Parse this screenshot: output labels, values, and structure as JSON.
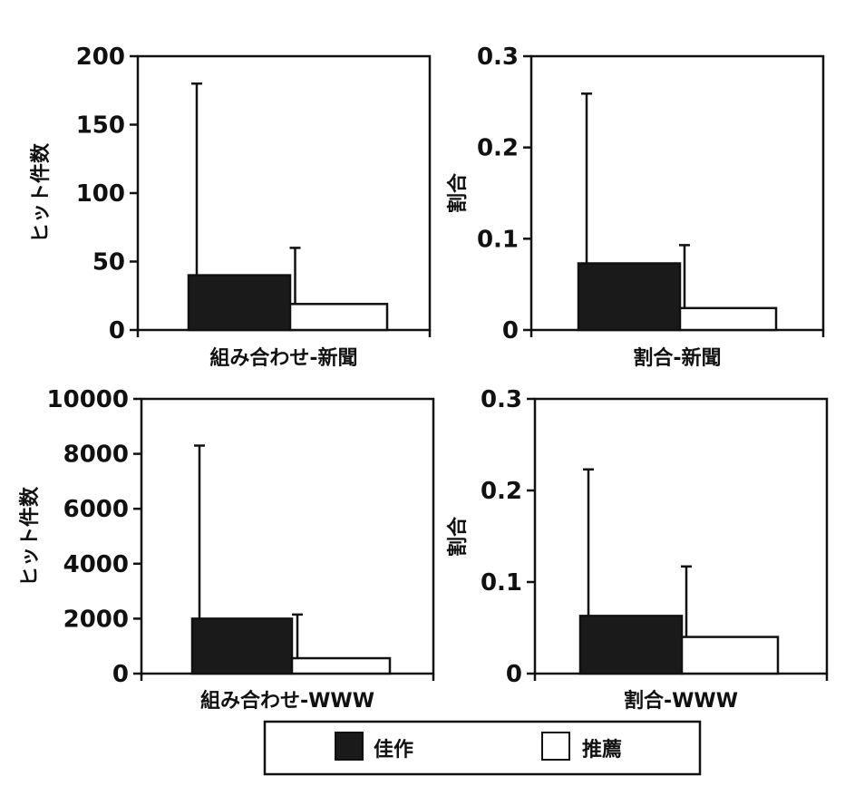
{
  "chart_data": [
    {
      "type": "bar",
      "xlabel": "組み合わせ-新聞",
      "ylabel": "ヒット件数",
      "ylim": [
        0,
        200
      ],
      "yticks": [
        "0",
        "50",
        "100",
        "150",
        "200"
      ],
      "series": [
        {
          "name": "佳作",
          "value": 40,
          "error_upper": 180
        },
        {
          "name": "推薦",
          "value": 19,
          "error_upper": 60
        }
      ]
    },
    {
      "type": "bar",
      "xlabel": "割合-新聞",
      "ylabel": "割合",
      "ylim": [
        0,
        0.3
      ],
      "yticks": [
        "0",
        "0.1",
        "0.2",
        "0.3"
      ],
      "series": [
        {
          "name": "佳作",
          "value": 0.073,
          "error_upper": 0.259
        },
        {
          "name": "推薦",
          "value": 0.024,
          "error_upper": 0.093
        }
      ]
    },
    {
      "type": "bar",
      "xlabel": "組み合わせ-WWW",
      "ylabel": "ヒット件数",
      "ylim": [
        0,
        10000
      ],
      "yticks": [
        "0",
        "2000",
        "4000",
        "6000",
        "8000",
        "10000"
      ],
      "series": [
        {
          "name": "佳作",
          "value": 2000,
          "error_upper": 8300
        },
        {
          "name": "推薦",
          "value": 560,
          "error_upper": 2150
        }
      ]
    },
    {
      "type": "bar",
      "xlabel": "割合-WWW",
      "ylabel": "割合",
      "ylim": [
        0,
        0.3
      ],
      "yticks": [
        "0",
        "0.1",
        "0.2",
        "0.3"
      ],
      "series": [
        {
          "name": "佳作",
          "value": 0.063,
          "error_upper": 0.223
        },
        {
          "name": "推薦",
          "value": 0.04,
          "error_upper": 0.117
        }
      ]
    }
  ],
  "legend": {
    "items": [
      {
        "name": "佳作",
        "color": "#1a1a1a"
      },
      {
        "name": "推薦",
        "color": "#ffffff"
      }
    ]
  },
  "colors": {
    "dark_bar": "#1a1a1a",
    "light_bar": "#ffffff",
    "axis": "#111111"
  }
}
